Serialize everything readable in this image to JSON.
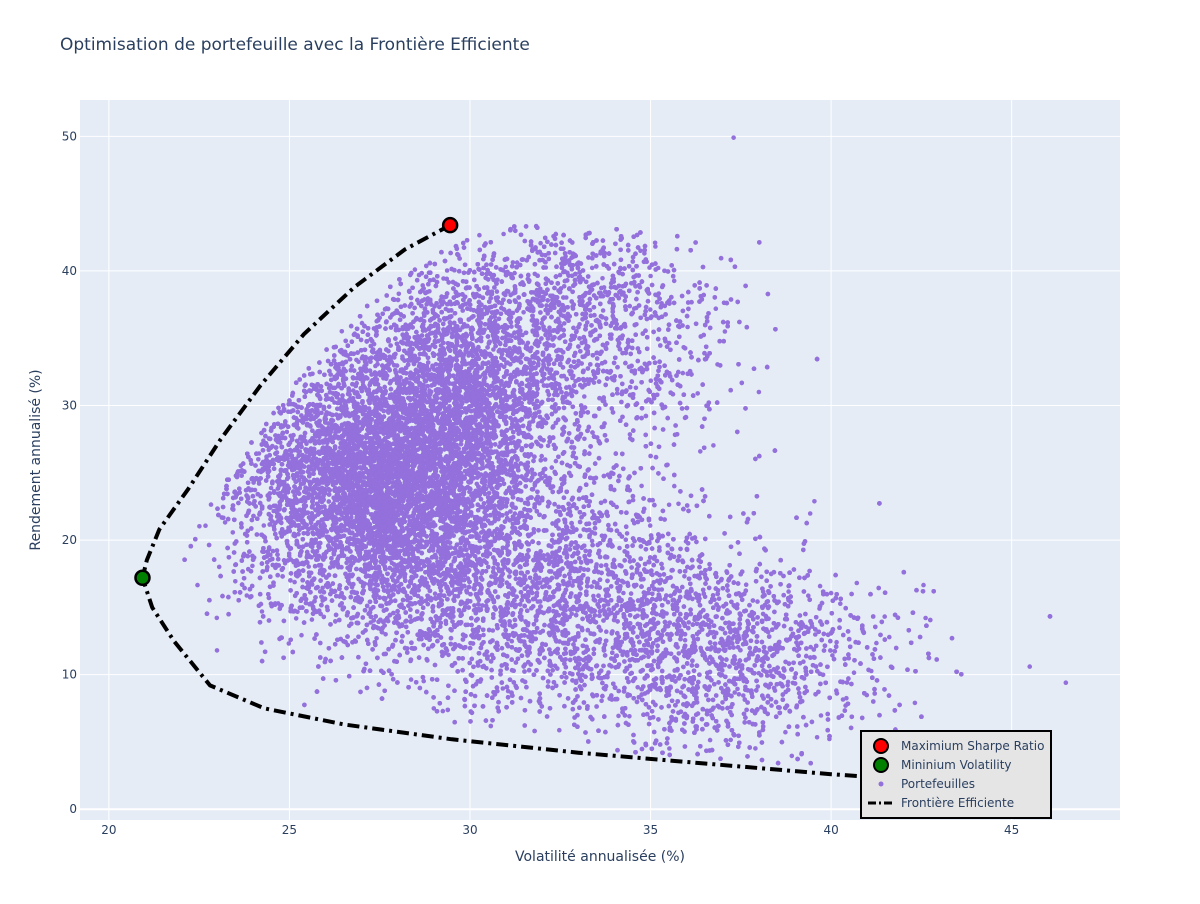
{
  "chart_data": {
    "type": "scatter",
    "title": "Optimisation de portefeuille avec la Frontière Efficiente",
    "xlabel": "Volatilité annualisée (%)",
    "ylabel": "Rendement annualisé (%)",
    "xlim": [
      19.2,
      48.0
    ],
    "ylim": [
      -0.8,
      52.7
    ],
    "x_ticks": [
      20,
      25,
      30,
      35,
      40,
      45
    ],
    "y_ticks": [
      0,
      10,
      20,
      30,
      40,
      50
    ],
    "grid": true,
    "legend_position": "bottom-right",
    "colors": {
      "background": "#e5ecf6",
      "grid": "#ffffff",
      "portfolios": "#9370db",
      "max_sharpe": "#ff0000",
      "min_vol": "#008000",
      "frontier": "#000000"
    },
    "series": [
      {
        "name": "Maximium Sharpe Ratio",
        "type": "marker",
        "points": [
          [
            29.45,
            43.4
          ]
        ]
      },
      {
        "name": "Mininium Volatility",
        "type": "marker",
        "points": [
          [
            20.93,
            17.2
          ]
        ]
      },
      {
        "name": "Portefeuilles",
        "type": "scatter",
        "count": 25000,
        "clusters": [
          {
            "cx": 27.3,
            "cy": 24.0,
            "sx": 1.9,
            "sy": 4.8,
            "w": 0.38
          },
          {
            "cx": 29.5,
            "cy": 30.5,
            "sx": 1.6,
            "sy": 5.0,
            "w": 0.22
          },
          {
            "cx": 31.5,
            "cy": 17.0,
            "sx": 2.6,
            "sy": 4.5,
            "w": 0.18
          },
          {
            "cx": 36.5,
            "cy": 11.5,
            "sx": 2.5,
            "sy": 3.5,
            "w": 0.12
          },
          {
            "cx": 33.0,
            "cy": 36.0,
            "sx": 2.0,
            "sy": 4.5,
            "w": 0.1
          }
        ],
        "extreme_points": [
          [
            37.3,
            49.9
          ],
          [
            46.5,
            9.4
          ],
          [
            45.5,
            10.6
          ],
          [
            38.0,
            31.0
          ]
        ]
      },
      {
        "name": "Frontière Efficiente",
        "type": "line",
        "points": [
          [
            29.45,
            43.4
          ],
          [
            28.2,
            41.6
          ],
          [
            26.8,
            38.8
          ],
          [
            25.4,
            35.3
          ],
          [
            24.2,
            31.5
          ],
          [
            23.1,
            27.5
          ],
          [
            22.2,
            23.8
          ],
          [
            21.4,
            20.8
          ],
          [
            21.05,
            18.5
          ],
          [
            20.93,
            17.2
          ],
          [
            21.2,
            15.0
          ],
          [
            21.8,
            12.5
          ],
          [
            22.8,
            9.2
          ],
          [
            24.3,
            7.5
          ],
          [
            26.5,
            6.3
          ],
          [
            29.5,
            5.2
          ],
          [
            33.0,
            4.2
          ],
          [
            36.5,
            3.4
          ],
          [
            40.0,
            2.6
          ],
          [
            42.2,
            2.2
          ]
        ]
      }
    ]
  }
}
